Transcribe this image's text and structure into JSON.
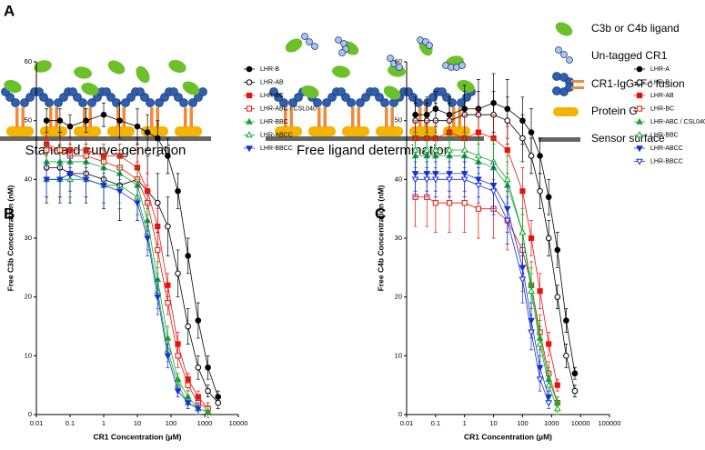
{
  "panel_labels": {
    "a": "A",
    "b": "B",
    "c": "C"
  },
  "diagram": {
    "captions": [
      "Standard curve generation",
      "Free ligand determination"
    ],
    "legend": [
      "C3b or C4b ligand",
      "Un-tagged CR1",
      "CR1-IgG4Fc fusion",
      "Protein G",
      "Sensor surface"
    ]
  },
  "chart_data": [
    {
      "type": "scatter",
      "y_label": "Free C3b Concentration (nM)",
      "x_label": "CR1 Concentration (µM)",
      "log_x": true,
      "x": [
        0.02,
        0.05,
        0.1,
        0.3,
        1,
        3,
        10,
        20,
        40,
        80,
        160,
        320,
        640,
        1250,
        2500
      ],
      "xlim": [
        0.01,
        10000
      ],
      "xticks": [
        0.01,
        0.1,
        1,
        10,
        100,
        1000,
        10000
      ],
      "ylim": [
        0,
        60
      ],
      "yticks": [
        0,
        10,
        20,
        30,
        40,
        50,
        60
      ],
      "series": [
        {
          "name": "LHR-B",
          "color": "#000000",
          "marker": "circle",
          "filled": true,
          "values": [
            50,
            50,
            49,
            50,
            51,
            50,
            49,
            48,
            47,
            44,
            38,
            27,
            16,
            8,
            3
          ],
          "errors": [
            2,
            2,
            2,
            2,
            2,
            3,
            3,
            3,
            3,
            3,
            3,
            3,
            3,
            2,
            1
          ]
        },
        {
          "name": "LHR-AB",
          "color": "#000000",
          "marker": "circle",
          "filled": false,
          "values": [
            42,
            42,
            41,
            41,
            40,
            39,
            40,
            38,
            36,
            32,
            24,
            15,
            8,
            4,
            2
          ],
          "errors": [
            6,
            6,
            5,
            5,
            5,
            6,
            7,
            6,
            5,
            5,
            4,
            3,
            2,
            1,
            1
          ]
        },
        {
          "name": "LHR-BC",
          "color": "#e8120c",
          "marker": "square",
          "filled": true,
          "values": [
            46,
            45,
            45,
            45,
            44,
            44,
            42,
            38,
            32,
            22,
            12,
            6,
            3,
            1,
            null
          ],
          "errors": [
            2,
            2,
            2,
            2,
            2,
            2,
            3,
            3,
            3,
            2,
            2,
            1,
            1,
            1,
            null
          ]
        },
        {
          "name": "LHR-ABC / CSL040",
          "color": "#e8120c",
          "marker": "square",
          "filled": false,
          "values": [
            45,
            45,
            44,
            44,
            43,
            42,
            40,
            36,
            28,
            19,
            10,
            5,
            2,
            1,
            null
          ],
          "errors": [
            2,
            2,
            2,
            2,
            2,
            2,
            3,
            3,
            3,
            2,
            2,
            1,
            1,
            1,
            null
          ]
        },
        {
          "name": "LHR-BBC",
          "color": "#16a82b",
          "marker": "triangle",
          "filled": true,
          "values": [
            43,
            43,
            43,
            43,
            42,
            41,
            39,
            33,
            23,
            13,
            6,
            3,
            1,
            0.5,
            null
          ],
          "errors": [
            3,
            3,
            3,
            3,
            3,
            3,
            3,
            3,
            3,
            2,
            1,
            1,
            1,
            1,
            null
          ]
        },
        {
          "name": "LHR-ABCC",
          "color": "#16a82b",
          "marker": "triangle",
          "filled": false,
          "values": [
            40,
            40,
            40,
            40,
            39,
            39,
            37,
            31,
            21,
            11,
            5,
            2,
            1,
            null,
            null
          ],
          "errors": [
            3,
            3,
            3,
            3,
            3,
            3,
            3,
            3,
            3,
            2,
            1,
            1,
            1,
            null,
            null
          ]
        },
        {
          "name": "LHR-BBCC",
          "color": "#1530d8",
          "marker": "triangle-down",
          "filled": true,
          "values": [
            40,
            40,
            41,
            40,
            39,
            38,
            36,
            30,
            20,
            10,
            4,
            2,
            1,
            null,
            null
          ],
          "errors": [
            3,
            3,
            3,
            3,
            3,
            3,
            3,
            3,
            3,
            2,
            1,
            1,
            1,
            null,
            null
          ]
        }
      ]
    },
    {
      "type": "scatter",
      "y_label": "Free C4b Concentration (nM)",
      "x_label": "CR1 Concentration (µM)",
      "log_x": true,
      "x": [
        0.02,
        0.05,
        0.1,
        0.3,
        1,
        3,
        10,
        30,
        100,
        200,
        400,
        800,
        1600,
        3200,
        6400
      ],
      "xlim": [
        0.01,
        100000
      ],
      "xticks": [
        0.01,
        0.1,
        1,
        10,
        100,
        1000,
        10000,
        100000
      ],
      "ylim": [
        0,
        60
      ],
      "yticks": [
        0,
        10,
        20,
        30,
        40,
        50,
        60
      ],
      "series": [
        {
          "name": "LHR-A",
          "color": "#000000",
          "marker": "circle",
          "filled": true,
          "values": [
            51,
            51,
            52,
            51,
            52,
            52,
            53,
            52,
            50,
            48,
            44,
            37,
            28,
            16,
            7
          ],
          "errors": [
            3,
            3,
            3,
            3,
            4,
            5,
            5,
            5,
            4,
            4,
            3,
            3,
            3,
            2,
            1
          ]
        },
        {
          "name": "LHR-B",
          "color": "#000000",
          "marker": "circle",
          "filled": false,
          "values": [
            50,
            50,
            50,
            50,
            51,
            51,
            51,
            50,
            47,
            44,
            38,
            30,
            20,
            10,
            4
          ],
          "errors": [
            3,
            3,
            3,
            3,
            4,
            4,
            4,
            4,
            4,
            3,
            3,
            3,
            2,
            2,
            1
          ]
        },
        {
          "name": "LHR-AB",
          "color": "#e8120c",
          "marker": "square",
          "filled": true,
          "values": [
            47,
            47,
            47,
            48,
            47,
            48,
            47,
            45,
            38,
            30,
            21,
            12,
            5,
            null,
            null
          ],
          "errors": [
            3,
            3,
            3,
            3,
            4,
            4,
            4,
            4,
            4,
            3,
            3,
            2,
            1,
            null,
            null
          ]
        },
        {
          "name": "LHR-BC",
          "color": "#e8120c",
          "marker": "square",
          "filled": false,
          "values": [
            37,
            37,
            36,
            36,
            36,
            35,
            35,
            33,
            28,
            22,
            14,
            7,
            2,
            null,
            null
          ],
          "errors": [
            5,
            5,
            5,
            5,
            5,
            5,
            5,
            5,
            4,
            4,
            3,
            2,
            1,
            null,
            null
          ]
        },
        {
          "name": "LHR-ABC / CSL040",
          "color": "#16a82b",
          "marker": "triangle",
          "filled": true,
          "values": [
            44,
            44,
            44,
            44,
            44,
            43,
            42,
            39,
            31,
            22,
            13,
            6,
            2,
            null,
            null
          ],
          "errors": [
            3,
            3,
            3,
            3,
            3,
            3,
            4,
            4,
            4,
            3,
            3,
            2,
            1,
            null,
            null
          ]
        },
        {
          "name": "LHR-BBC",
          "color": "#16a82b",
          "marker": "triangle",
          "filled": false,
          "values": [
            45,
            45,
            45,
            45,
            45,
            44,
            43,
            40,
            31,
            21,
            12,
            5,
            1,
            null,
            null
          ],
          "errors": [
            3,
            3,
            3,
            3,
            3,
            3,
            4,
            4,
            4,
            3,
            3,
            2,
            1,
            null,
            null
          ]
        },
        {
          "name": "LHR-ABCC",
          "color": "#1530d8",
          "marker": "triangle-down",
          "filled": true,
          "values": [
            41,
            41,
            41,
            41,
            41,
            40,
            39,
            35,
            25,
            16,
            8,
            3,
            null,
            null,
            null
          ],
          "errors": [
            3,
            3,
            3,
            3,
            3,
            3,
            4,
            4,
            4,
            3,
            2,
            1,
            null,
            null,
            null
          ]
        },
        {
          "name": "LHR-BBCC",
          "color": "#1530d8",
          "marker": "triangle-down",
          "filled": false,
          "values": [
            40,
            40,
            40,
            40,
            40,
            39,
            38,
            33,
            23,
            14,
            6,
            2,
            null,
            null,
            null
          ],
          "errors": [
            3,
            3,
            3,
            3,
            3,
            3,
            4,
            4,
            4,
            3,
            2,
            1,
            null,
            null,
            null
          ]
        }
      ]
    }
  ]
}
